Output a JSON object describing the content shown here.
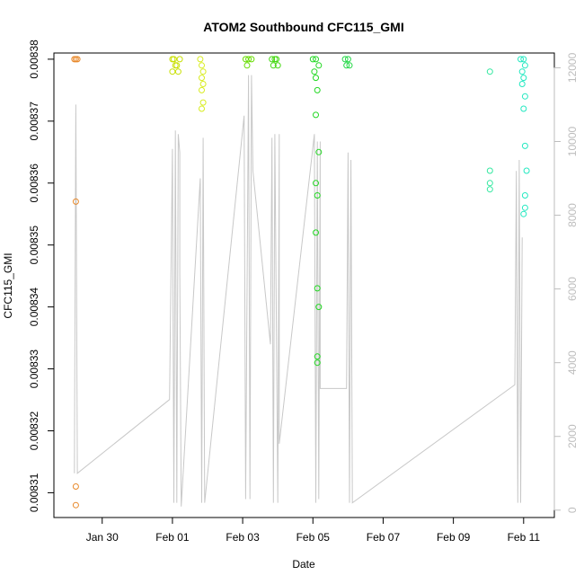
{
  "chart_data": {
    "type": "scatter",
    "title": "ATOM2 Southbound CFC115_GMI",
    "xlabel": "Date",
    "ylabel": "CFC115_GMI",
    "y2label": "",
    "xlim": [
      "2018-01-28T15:00:00",
      "2018-02-11T21:00:00"
    ],
    "ylim": [
      0.008306,
      0.008381
    ],
    "y2lim": [
      -200,
      12400
    ],
    "x_ticks": [
      {
        "date": "2018-01-30",
        "label": "Jan 30"
      },
      {
        "date": "2018-02-01",
        "label": "Feb 01"
      },
      {
        "date": "2018-02-03",
        "label": "Feb 03"
      },
      {
        "date": "2018-02-05",
        "label": "Feb 05"
      },
      {
        "date": "2018-02-07",
        "label": "Feb 07"
      },
      {
        "date": "2018-02-09",
        "label": "Feb 09"
      },
      {
        "date": "2018-02-11",
        "label": "Feb 11"
      }
    ],
    "y_ticks": [
      "0.00831",
      "0.00832",
      "0.00833",
      "0.00834",
      "0.00835",
      "0.00836",
      "0.00837",
      "0.00838"
    ],
    "y_tick_values": [
      0.00831,
      0.00832,
      0.00833,
      0.00834,
      0.00835,
      0.00836,
      0.00837,
      0.00838
    ],
    "y2_ticks": [
      "0",
      "2000",
      "4000",
      "6000",
      "8000",
      "10000",
      "12000"
    ],
    "y2_tick_values": [
      0,
      2000,
      4000,
      6000,
      8000,
      10000,
      12000
    ],
    "grid": false,
    "series": [
      {
        "color": "#E8892B",
        "points": [
          [
            "2018-01-29T05:00",
            0.00838
          ],
          [
            "2018-01-29T06:00",
            0.00838
          ],
          [
            "2018-01-29T07:00",
            0.00838
          ],
          [
            "2018-01-29T06:00",
            0.008357
          ],
          [
            "2018-01-29T06:00",
            0.008311
          ],
          [
            "2018-01-29T06:00",
            0.008308
          ]
        ]
      },
      {
        "color": "#C8E000",
        "points": [
          [
            "2018-02-01T00:00",
            0.00838
          ],
          [
            "2018-02-01T02:00",
            0.008379
          ],
          [
            "2018-02-01T04:00",
            0.008378
          ],
          [
            "2018-02-01T01:00",
            0.00838
          ],
          [
            "2018-02-01T03:00",
            0.008379
          ],
          [
            "2018-02-01T05:00",
            0.00838
          ],
          [
            "2018-02-01T00:00",
            0.008378
          ]
        ]
      },
      {
        "color": "#D8EC20",
        "points": [
          [
            "2018-02-01T19:00",
            0.00838
          ],
          [
            "2018-02-01T20:00",
            0.008379
          ],
          [
            "2018-02-01T21:00",
            0.008378
          ],
          [
            "2018-02-01T20:00",
            0.008377
          ],
          [
            "2018-02-01T21:00",
            0.008376
          ],
          [
            "2018-02-01T20:00",
            0.008375
          ],
          [
            "2018-02-01T21:00",
            0.008373
          ],
          [
            "2018-02-01T20:00",
            0.008372
          ]
        ]
      },
      {
        "color": "#66DD00",
        "points": [
          [
            "2018-02-03T02:00",
            0.00838
          ],
          [
            "2018-02-03T04:00",
            0.00838
          ],
          [
            "2018-02-03T06:00",
            0.00838
          ],
          [
            "2018-02-03T03:00",
            0.008379
          ]
        ]
      },
      {
        "color": "#44D810",
        "points": [
          [
            "2018-02-03T20:00",
            0.00838
          ],
          [
            "2018-02-03T22:00",
            0.00838
          ],
          [
            "2018-02-04T00:00",
            0.008379
          ],
          [
            "2018-02-03T21:00",
            0.008379
          ],
          [
            "2018-02-03T23:00",
            0.00838
          ]
        ]
      },
      {
        "color": "#22D822",
        "points": [
          [
            "2018-02-05T00:00",
            0.00838
          ],
          [
            "2018-02-05T02:00",
            0.00838
          ],
          [
            "2018-02-05T04:00",
            0.008379
          ],
          [
            "2018-02-05T01:00",
            0.008378
          ],
          [
            "2018-02-05T02:00",
            0.008377
          ],
          [
            "2018-02-05T03:00",
            0.008375
          ],
          [
            "2018-02-05T02:00",
            0.008371
          ],
          [
            "2018-02-05T04:00",
            0.008365
          ],
          [
            "2018-02-05T02:00",
            0.00836
          ],
          [
            "2018-02-05T03:00",
            0.008358
          ],
          [
            "2018-02-05T02:00",
            0.008352
          ],
          [
            "2018-02-05T03:00",
            0.008343
          ],
          [
            "2018-02-05T04:00",
            0.00834
          ],
          [
            "2018-02-05T03:00",
            0.008332
          ],
          [
            "2018-02-05T03:00",
            0.008331
          ]
        ]
      },
      {
        "color": "#22D845",
        "points": [
          [
            "2018-02-05T22:00",
            0.00838
          ],
          [
            "2018-02-06T00:00",
            0.00838
          ],
          [
            "2018-02-06T01:00",
            0.008379
          ],
          [
            "2018-02-05T23:00",
            0.008379
          ]
        ]
      },
      {
        "color": "#33E8A0",
        "points": [
          [
            "2018-02-10T01:00",
            0.008378
          ],
          [
            "2018-02-10T01:00",
            0.008362
          ],
          [
            "2018-02-10T01:00",
            0.00836
          ],
          [
            "2018-02-10T01:00",
            0.008359
          ]
        ]
      },
      {
        "color": "#22E8C0",
        "points": [
          [
            "2018-02-10T22:00",
            0.00838
          ],
          [
            "2018-02-11T00:00",
            0.00838
          ],
          [
            "2018-02-11T01:00",
            0.008379
          ],
          [
            "2018-02-10T23:00",
            0.008378
          ],
          [
            "2018-02-11T00:00",
            0.008377
          ],
          [
            "2018-02-10T23:00",
            0.008376
          ],
          [
            "2018-02-11T01:00",
            0.008374
          ],
          [
            "2018-02-11T00:00",
            0.008372
          ],
          [
            "2018-02-11T01:00",
            0.008366
          ],
          [
            "2018-02-11T02:00",
            0.008362
          ],
          [
            "2018-02-11T01:00",
            0.008358
          ],
          [
            "2018-02-11T01:00",
            0.008356
          ],
          [
            "2018-02-11T00:00",
            0.008355
          ]
        ]
      }
    ],
    "altitude_line": {
      "color": "#c8c8c8",
      "points": [
        [
          "2018-01-29T05:00",
          1000
        ],
        [
          "2018-01-29T06:00",
          11000
        ],
        [
          "2018-01-29T07:00",
          1000
        ],
        [
          "2018-01-31T22:00",
          3000
        ],
        [
          "2018-02-01T00:00",
          9800
        ],
        [
          "2018-02-01T01:00",
          200
        ],
        [
          "2018-02-01T02:00",
          10300
        ],
        [
          "2018-02-01T03:00",
          200
        ],
        [
          "2018-02-01T04:00",
          10200
        ],
        [
          "2018-02-01T05:00",
          9700
        ],
        [
          "2018-02-01T05:00",
          6500
        ],
        [
          "2018-02-01T06:00",
          100
        ],
        [
          "2018-02-01T19:00",
          9000
        ],
        [
          "2018-02-01T20:00",
          200
        ],
        [
          "2018-02-01T21:00",
          10100
        ],
        [
          "2018-02-01T22:00",
          200
        ],
        [
          "2018-02-03T01:00",
          10700
        ],
        [
          "2018-02-03T02:00",
          300
        ],
        [
          "2018-02-03T04:00",
          11800
        ],
        [
          "2018-02-03T05:00",
          300
        ],
        [
          "2018-02-03T06:00",
          11800
        ],
        [
          "2018-02-03T07:00",
          9200
        ],
        [
          "2018-02-03T19:00",
          4500
        ],
        [
          "2018-02-03T20:00",
          10100
        ],
        [
          "2018-02-03T21:00",
          200
        ],
        [
          "2018-02-03T22:00",
          10200
        ],
        [
          "2018-02-04T00:00",
          200
        ],
        [
          "2018-02-04T01:00",
          10200
        ],
        [
          "2018-02-04T01:00",
          1800
        ],
        [
          "2018-02-05T01:00",
          10200
        ],
        [
          "2018-02-05T02:00",
          200
        ],
        [
          "2018-02-05T03:00",
          10000
        ],
        [
          "2018-02-05T04:00",
          300
        ],
        [
          "2018-02-05T05:00",
          10000
        ],
        [
          "2018-02-05T05:00",
          3300
        ],
        [
          "2018-02-05T23:00",
          3300
        ],
        [
          "2018-02-06T00:00",
          9700
        ],
        [
          "2018-02-06T01:00",
          200
        ],
        [
          "2018-02-06T02:00",
          9500
        ],
        [
          "2018-02-06T03:00",
          200
        ],
        [
          "2018-02-10T18:00",
          3400
        ],
        [
          "2018-02-10T19:00",
          9200
        ],
        [
          "2018-02-10T20:00",
          200
        ],
        [
          "2018-02-10T21:00",
          9500
        ],
        [
          "2018-02-10T22:00",
          200
        ],
        [
          "2018-02-10T23:00",
          7400
        ]
      ]
    }
  }
}
